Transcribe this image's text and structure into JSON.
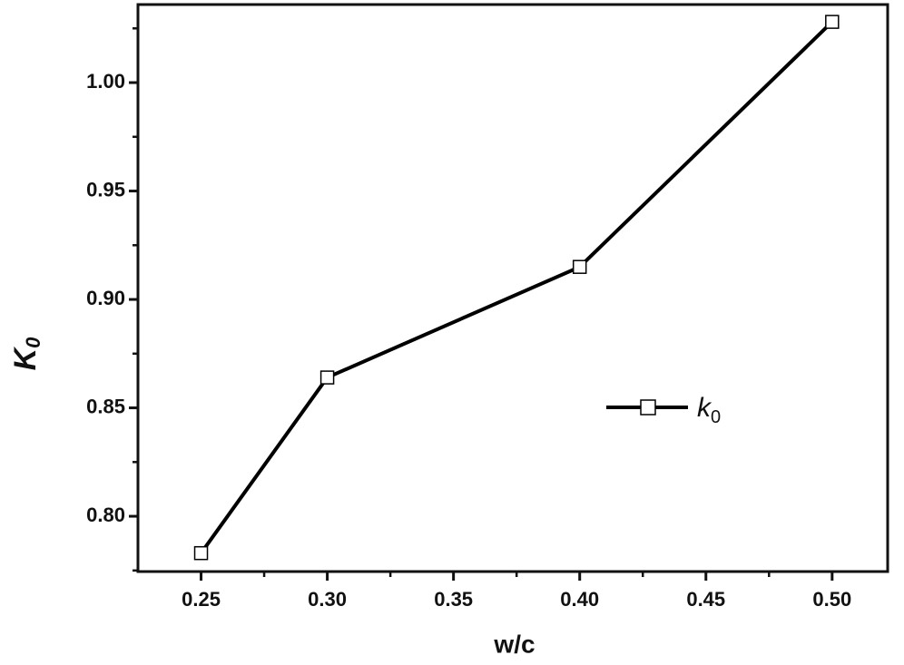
{
  "chart_data": {
    "type": "line",
    "x_label": "w/c",
    "y_label": "K",
    "y_label_sub": "0",
    "x": [
      0.25,
      0.3,
      0.4,
      0.5
    ],
    "series": [
      {
        "name": "k",
        "name_sub": "0",
        "color": "#000000",
        "marker": "square",
        "values": [
          0.783,
          0.864,
          0.915,
          1.028
        ]
      }
    ],
    "xlim": [
      0.225,
      0.522
    ],
    "ylim": [
      0.7745,
      1.036
    ],
    "xticks": [
      {
        "value": 0.25,
        "label": "0.25"
      },
      {
        "value": 0.3,
        "label": "0.30"
      },
      {
        "value": 0.35,
        "label": "0.35"
      },
      {
        "value": 0.4,
        "label": "0.40"
      },
      {
        "value": 0.45,
        "label": "0.45"
      },
      {
        "value": 0.5,
        "label": "0.50"
      }
    ],
    "yticks": [
      {
        "value": 0.8,
        "label": "0.80"
      },
      {
        "value": 0.85,
        "label": "0.85"
      },
      {
        "value": 0.9,
        "label": "0.90"
      },
      {
        "value": 0.95,
        "label": "0.95"
      },
      {
        "value": 1.0,
        "label": "1.00"
      }
    ],
    "x_minor_ticks": [
      0.275,
      0.325,
      0.375,
      0.425,
      0.475
    ],
    "y_minor_ticks": [
      0.775,
      0.825,
      0.875,
      0.925,
      0.975,
      1.025
    ],
    "grid": false
  }
}
